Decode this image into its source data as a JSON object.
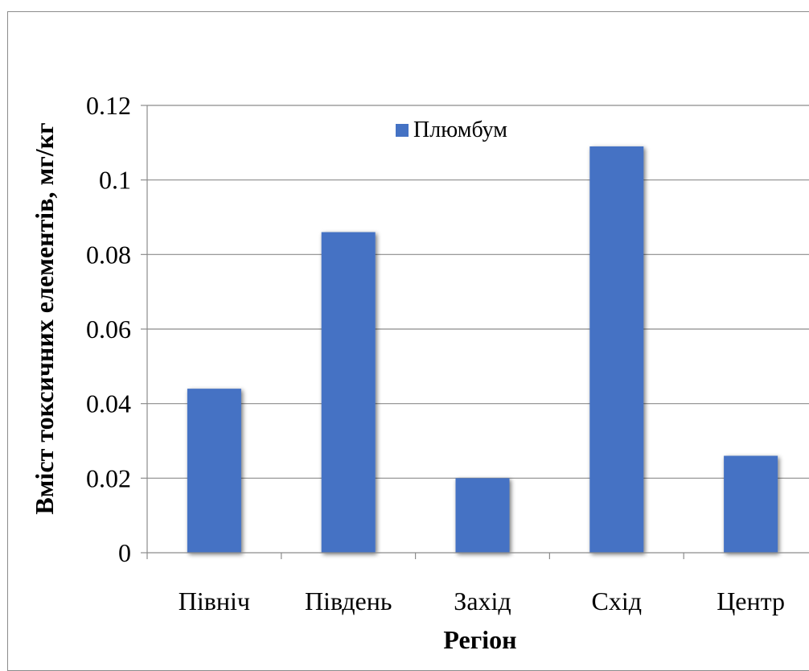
{
  "chart_data": {
    "type": "bar",
    "categories": [
      "Північ",
      "Південь",
      "Захід",
      "Схід",
      "Центр"
    ],
    "series": [
      {
        "name": "Плюмбум",
        "values": [
          0.044,
          0.086,
          0.02,
          0.109,
          0.026
        ]
      }
    ],
    "xlabel": "Регіон",
    "ylabel": "Вміст токсичних елементів, мг/кг",
    "ylim": [
      0,
      0.12
    ],
    "yticks": [
      "0",
      "0.02",
      "0.04",
      "0.06",
      "0.08",
      "0.1",
      "0.12"
    ],
    "grid": true,
    "legend": "top-center",
    "bar_color": "#4472c4"
  }
}
